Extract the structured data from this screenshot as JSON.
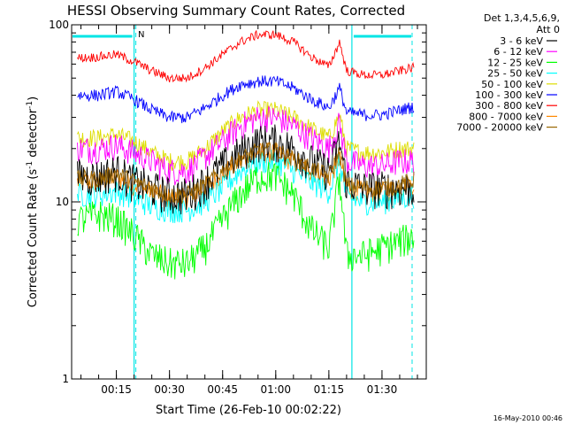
{
  "chart_data": {
    "type": "line",
    "title": "HESSI Observing Summary Count Rates, Corrected",
    "xlabel": "Start Time (26-Feb-10 00:02:22)",
    "ylabel": "Corrected Count Rate (s",
    "ylabel_sup": "-1",
    "ylabel_mid": " detector",
    "ylabel_sup2": "-1",
    "ylabel_end": ")",
    "yscale": "log",
    "ylim": [
      1,
      100
    ],
    "y_ticks": [
      {
        "value": 1,
        "label": "1"
      },
      {
        "value": 10,
        "label": "10"
      },
      {
        "value": 100,
        "label": "100"
      }
    ],
    "xlim_minutes": [
      2.37,
      102.5
    ],
    "x_ticks": [
      {
        "minutes": 15,
        "label": "00:15"
      },
      {
        "minutes": 30,
        "label": "00:30"
      },
      {
        "minutes": 45,
        "label": "00:45"
      },
      {
        "minutes": 60,
        "label": "01:00"
      },
      {
        "minutes": 75,
        "label": "01:15"
      },
      {
        "minutes": 90,
        "label": "01:30"
      }
    ],
    "legend": {
      "header": [
        "Det 1,3,4,5,6,9,",
        "Att 0"
      ],
      "placement": "right"
    },
    "night_flag_label": "N",
    "night_markers_minutes": [
      20.0,
      81.5
    ],
    "night_dashed_minutes": [
      20.5,
      98.5
    ],
    "x_minutes": [
      5,
      10,
      15,
      20,
      25,
      30,
      35,
      40,
      45,
      50,
      55,
      60,
      65,
      70,
      75,
      78,
      80,
      85,
      90,
      95,
      100
    ],
    "series": [
      {
        "name": "3 - 6 keV",
        "color": "#000000",
        "values": [
          14,
          14,
          15,
          13,
          12,
          11,
          11,
          13,
          16,
          19,
          22,
          22,
          20,
          17,
          15,
          22,
          13,
          12,
          12,
          12,
          12
        ]
      },
      {
        "name": "6 - 12 keV",
        "color": "#ff00ff",
        "values": [
          20,
          20,
          21,
          19,
          17,
          15,
          15,
          18,
          22,
          27,
          30,
          30,
          27,
          23,
          20,
          28,
          17,
          16,
          16,
          17,
          17
        ]
      },
      {
        "name": "12 - 25 keV",
        "color": "#00ff00",
        "values": [
          8,
          8.5,
          8,
          6.5,
          5,
          4.5,
          4.5,
          5.5,
          8,
          11,
          14,
          14,
          11,
          7,
          5.5,
          14,
          5,
          5,
          5.5,
          6,
          6.5
        ]
      },
      {
        "name": "25 - 50 keV",
        "color": "#00ffff",
        "values": [
          11,
          11,
          11.5,
          10.5,
          9.5,
          9,
          9,
          10,
          12,
          15,
          17,
          17,
          15,
          13,
          11.5,
          17,
          10.5,
          10,
          10,
          10.5,
          11
        ]
      },
      {
        "name": "50 - 100 keV",
        "color": "#dddd00",
        "values": [
          23,
          23,
          24,
          22,
          19,
          17,
          17,
          20,
          25,
          30,
          33,
          33,
          30,
          26,
          23,
          31,
          20,
          19,
          19,
          20,
          20
        ]
      },
      {
        "name": "100 - 300 keV",
        "color": "#0000ff",
        "values": [
          40,
          40,
          42,
          38,
          33,
          30,
          30,
          34,
          40,
          46,
          48,
          48,
          44,
          38,
          34,
          44,
          32,
          31,
          31,
          33,
          35
        ]
      },
      {
        "name": "300 - 800 keV",
        "color": "#ff0000",
        "values": [
          65,
          66,
          68,
          62,
          55,
          50,
          50,
          57,
          68,
          80,
          88,
          88,
          80,
          66,
          58,
          80,
          55,
          52,
          52,
          55,
          58
        ]
      },
      {
        "name": "800 - 7000 keV",
        "color": "#ff8800",
        "values": [
          13,
          13,
          14,
          12.5,
          11.5,
          10.5,
          10.5,
          12,
          14.5,
          17,
          19,
          19,
          17,
          15,
          13.5,
          18,
          12,
          11.5,
          11.5,
          12,
          13
        ]
      },
      {
        "name": "7000 - 20000 keV",
        "color": "#996600",
        "values": [
          13.5,
          13.5,
          14.5,
          13,
          12,
          11,
          11,
          12.5,
          15,
          17.5,
          19.5,
          19.5,
          17.5,
          15.5,
          14,
          19,
          12.5,
          12,
          12,
          12.5,
          13.5
        ]
      }
    ],
    "grid": false
  },
  "footer_date": "16-May-2010 00:46"
}
